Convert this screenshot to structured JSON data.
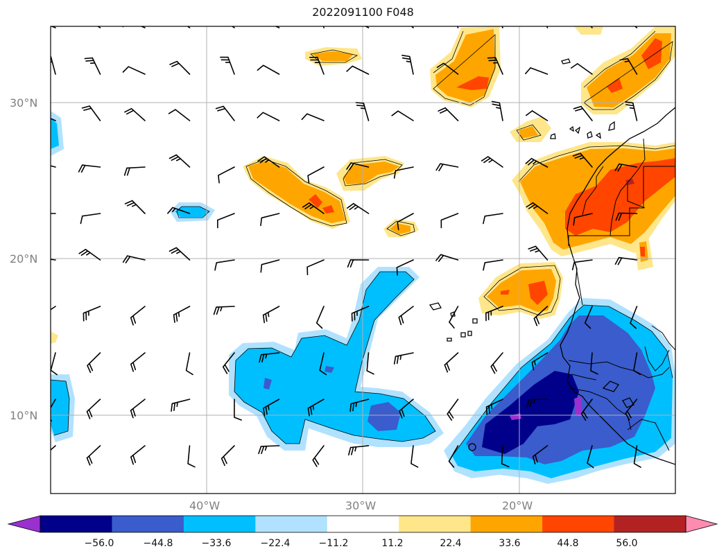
{
  "title": "2022091100 F048",
  "lat_labels": [
    "30°N",
    "20°N",
    "10°N"
  ],
  "lon_labels": [
    "40°W",
    "30°W",
    "20°W"
  ],
  "colorbar": {
    "labels": [
      "−56.0",
      "−44.8",
      "−33.6",
      "−22.4",
      "−11.2",
      "11.2",
      "22.4",
      "33.6",
      "44.8",
      "56.0"
    ],
    "colors": [
      "#9b30d0",
      "#00008b",
      "#3a5ccc",
      "#00bfff",
      "#b0e2ff",
      "#ffffff",
      "#ffe68a",
      "#ffa500",
      "#ff4500",
      "#b22222",
      "#ff8cb0"
    ]
  }
}
